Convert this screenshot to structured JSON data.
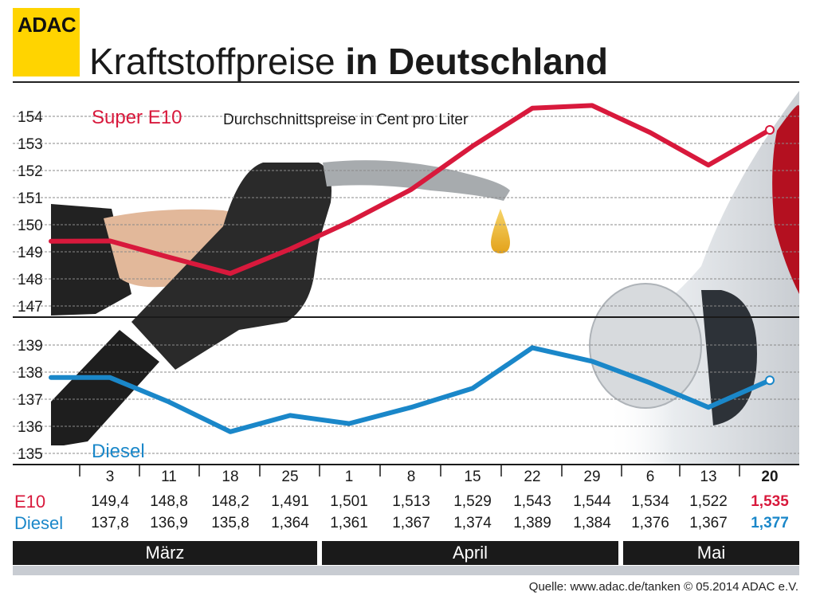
{
  "logo": "ADAC",
  "title": {
    "part1": "Kraftstoffpreise",
    "part2": "in Deutschland"
  },
  "chart_data": {
    "type": "line",
    "subtitle": "Durchschnittspreise in Cent pro Liter",
    "x": [
      "3",
      "11",
      "18",
      "25",
      "1",
      "8",
      "15",
      "22",
      "29",
      "6",
      "13",
      "20"
    ],
    "series": [
      {
        "name": "Super E10",
        "color": "#d8193c",
        "values": [
          149.4,
          148.8,
          148.2,
          149.1,
          150.1,
          151.3,
          152.9,
          154.3,
          154.4,
          153.4,
          152.2,
          153.5
        ],
        "ylim": [
          147,
          154
        ],
        "yticks": [
          147,
          148,
          149,
          150,
          151,
          152,
          153,
          154
        ]
      },
      {
        "name": "Diesel",
        "color": "#1a87c9",
        "values": [
          137.8,
          136.9,
          135.8,
          136.4,
          136.1,
          136.7,
          137.4,
          138.9,
          138.4,
          137.6,
          136.7,
          137.7
        ],
        "ylim": [
          135,
          139
        ],
        "yticks": [
          135,
          136,
          137,
          138,
          139
        ]
      }
    ],
    "grid": true
  },
  "table": {
    "dates": [
      "3",
      "11",
      "18",
      "25",
      "1",
      "8",
      "15",
      "22",
      "29",
      "6",
      "13",
      "20"
    ],
    "e10_label": "E10",
    "diesel_label": "Diesel",
    "e10": [
      "149,4",
      "148,8",
      "148,2",
      "1,491",
      "1,501",
      "1,513",
      "1,529",
      "1,543",
      "1,544",
      "1,534",
      "1,522",
      "1,535"
    ],
    "diesel": [
      "137,8",
      "136,9",
      "135,8",
      "1,364",
      "1,361",
      "1,367",
      "1,374",
      "1,389",
      "1,384",
      "1,376",
      "1,367",
      "1,377"
    ]
  },
  "months": [
    "März",
    "April",
    "Mai"
  ],
  "source": "Quelle: www.adac.de/tanken   © 05.2014  ADAC e.V.",
  "colors": {
    "e10": "#d8193c",
    "diesel": "#1a87c9",
    "logo": "#ffd400"
  }
}
